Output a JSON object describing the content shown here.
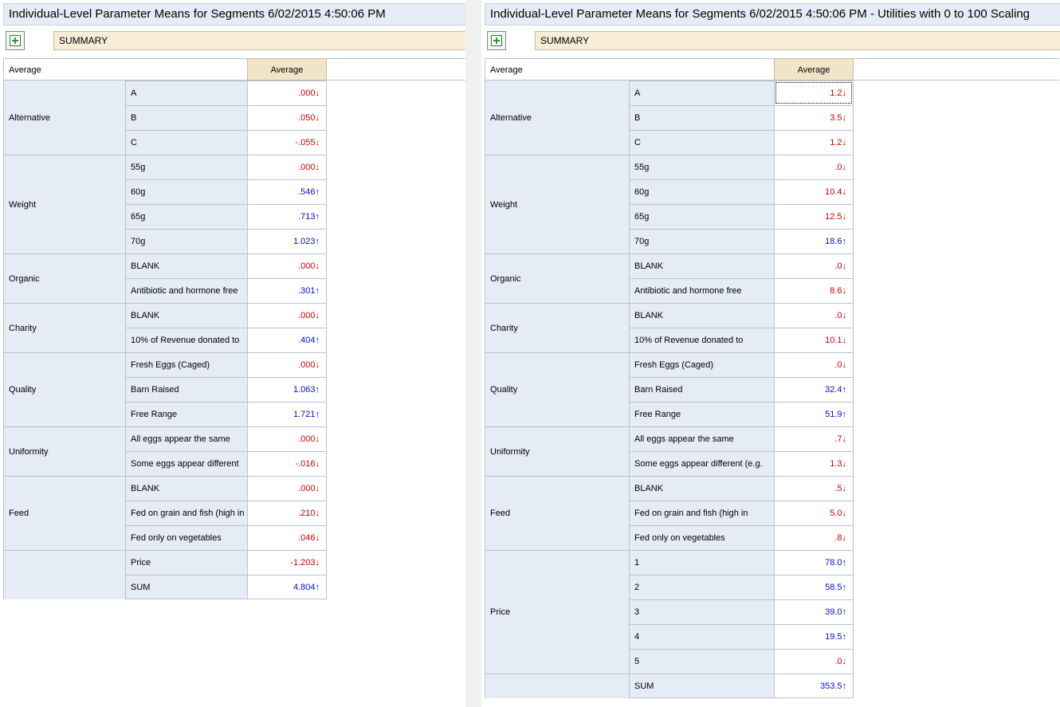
{
  "panels": [
    {
      "id": "left",
      "title": "Individual-Level Parameter Means for Segments 6/02/2015 4:50:06 PM",
      "summary_label": "SUMMARY",
      "stub_header": "Average",
      "column_header": "Average",
      "groups": [
        {
          "name": "Alternative",
          "rows": [
            {
              "label": "A",
              "value": ".000",
              "dir": "down"
            },
            {
              "label": "B",
              "value": ".050",
              "dir": "down"
            },
            {
              "label": "C",
              "value": "-.055",
              "dir": "down"
            }
          ]
        },
        {
          "name": "Weight",
          "rows": [
            {
              "label": "55g",
              "value": ".000",
              "dir": "down"
            },
            {
              "label": "60g",
              "value": ".546",
              "dir": "up"
            },
            {
              "label": "65g",
              "value": ".713",
              "dir": "up"
            },
            {
              "label": "70g",
              "value": "1.023",
              "dir": "up"
            }
          ]
        },
        {
          "name": "Organic",
          "rows": [
            {
              "label": "BLANK",
              "value": ".000",
              "dir": "down"
            },
            {
              "label": "Antibiotic and hormone free",
              "value": ".301",
              "dir": "up"
            }
          ]
        },
        {
          "name": "Charity",
          "rows": [
            {
              "label": "BLANK",
              "value": ".000",
              "dir": "down"
            },
            {
              "label": "10% of Revenue donated to",
              "value": ".404",
              "dir": "up"
            }
          ]
        },
        {
          "name": "Quality",
          "rows": [
            {
              "label": "Fresh Eggs (Caged)",
              "value": ".000",
              "dir": "down"
            },
            {
              "label": "Barn Raised",
              "value": "1.063",
              "dir": "up"
            },
            {
              "label": "Free Range",
              "value": "1.721",
              "dir": "up"
            }
          ]
        },
        {
          "name": "Uniformity",
          "rows": [
            {
              "label": "All eggs appear the same",
              "value": ".000",
              "dir": "down"
            },
            {
              "label": "Some eggs appear different",
              "value": "-.016",
              "dir": "down"
            }
          ]
        },
        {
          "name": "Feed",
          "rows": [
            {
              "label": "BLANK",
              "value": ".000",
              "dir": "down"
            },
            {
              "label": "Fed on grain and fish (high in",
              "value": ".210",
              "dir": "down"
            },
            {
              "label": "Fed only on vegetables",
              "value": ".046",
              "dir": "down"
            }
          ]
        },
        {
          "name": "",
          "rows": [
            {
              "label": "Price",
              "value": "-1.203",
              "dir": "down"
            },
            {
              "label": "SUM",
              "value": "4.804",
              "dir": "up"
            }
          ]
        }
      ]
    },
    {
      "id": "right",
      "title": "Individual-Level Parameter Means for Segments 6/02/2015 4:50:06 PM - Utilities with 0 to 100 Scaling",
      "summary_label": "SUMMARY",
      "stub_header": "Average",
      "column_header": "Average",
      "groups": [
        {
          "name": "Alternative",
          "rows": [
            {
              "label": "A",
              "value": "1.2",
              "dir": "down",
              "selected": true
            },
            {
              "label": "B",
              "value": "3.5",
              "dir": "down"
            },
            {
              "label": "C",
              "value": "1.2",
              "dir": "down"
            }
          ]
        },
        {
          "name": "Weight",
          "rows": [
            {
              "label": "55g",
              "value": ".0",
              "dir": "down"
            },
            {
              "label": "60g",
              "value": "10.4",
              "dir": "down"
            },
            {
              "label": "65g",
              "value": "12.5",
              "dir": "down"
            },
            {
              "label": "70g",
              "value": "18.6",
              "dir": "up"
            }
          ]
        },
        {
          "name": "Organic",
          "rows": [
            {
              "label": "BLANK",
              "value": ".0",
              "dir": "down"
            },
            {
              "label": "Antibiotic and hormone free",
              "value": "8.6",
              "dir": "down"
            }
          ]
        },
        {
          "name": "Charity",
          "rows": [
            {
              "label": "BLANK",
              "value": ".0",
              "dir": "down"
            },
            {
              "label": "10% of Revenue donated to",
              "value": "10.1",
              "dir": "down"
            }
          ]
        },
        {
          "name": "Quality",
          "rows": [
            {
              "label": "Fresh Eggs (Caged)",
              "value": ".0",
              "dir": "down"
            },
            {
              "label": "Barn Raised",
              "value": "32.4",
              "dir": "up"
            },
            {
              "label": "Free Range",
              "value": "51.9",
              "dir": "up"
            }
          ]
        },
        {
          "name": "Uniformity",
          "rows": [
            {
              "label": "All eggs appear the same",
              "value": ".7",
              "dir": "down"
            },
            {
              "label": "Some eggs appear different (e.g.",
              "value": "1.3",
              "dir": "down"
            }
          ]
        },
        {
          "name": "Feed",
          "rows": [
            {
              "label": "BLANK",
              "value": ".5",
              "dir": "down"
            },
            {
              "label": "Fed on grain and fish (high in",
              "value": "5.0",
              "dir": "down"
            },
            {
              "label": "Fed only on vegetables",
              "value": ".8",
              "dir": "down"
            }
          ]
        },
        {
          "name": "Price",
          "rows": [
            {
              "label": "1",
              "value": "78.0",
              "dir": "up"
            },
            {
              "label": "2",
              "value": "58.5",
              "dir": "up"
            },
            {
              "label": "3",
              "value": "39.0",
              "dir": "up"
            },
            {
              "label": "4",
              "value": "19.5",
              "dir": "up"
            },
            {
              "label": "5",
              "value": ".0",
              "dir": "down"
            }
          ]
        },
        {
          "name": "",
          "rows": [
            {
              "label": "SUM",
              "value": "353.5",
              "dir": "up"
            }
          ]
        }
      ]
    }
  ],
  "colors": {
    "negative": "#d00000",
    "positive": "#0010c8",
    "group_bg": "#e5ecf6",
    "header_bg": "#f2e4c8"
  },
  "icons": {
    "add_button": "add-table-icon",
    "up": "arrow-up",
    "down": "arrow-down"
  }
}
